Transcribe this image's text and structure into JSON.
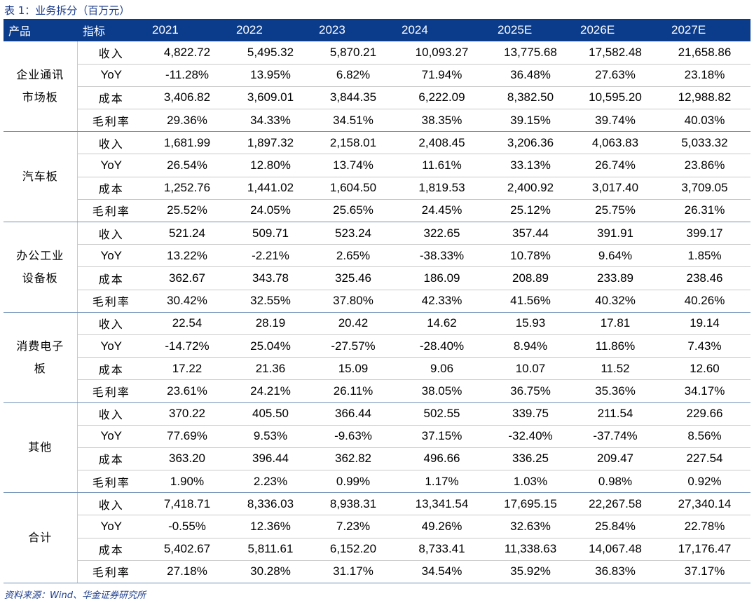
{
  "caption": "表 1：业务拆分（百万元）",
  "header": {
    "product": "产品",
    "indicator": "指标",
    "years": [
      "2021",
      "2022",
      "2023",
      "2024",
      "2025E",
      "2026E",
      "2027E"
    ]
  },
  "groups": [
    {
      "name_lines": [
        "企业通讯",
        "市场板"
      ],
      "rows": [
        {
          "indicator": "收入",
          "values": [
            "4,822.72",
            "5,495.32",
            "5,870.21",
            "10,093.27",
            "13,775.68",
            "17,582.48",
            "21,658.86"
          ]
        },
        {
          "indicator": "YoY",
          "values": [
            "-11.28%",
            "13.95%",
            "6.82%",
            "71.94%",
            "36.48%",
            "27.63%",
            "23.18%"
          ]
        },
        {
          "indicator": "成本",
          "values": [
            "3,406.82",
            "3,609.01",
            "3,844.35",
            "6,222.09",
            "8,382.50",
            "10,595.20",
            "12,988.82"
          ]
        },
        {
          "indicator": "毛利率",
          "values": [
            "29.36%",
            "34.33%",
            "34.51%",
            "38.35%",
            "39.15%",
            "39.74%",
            "40.03%"
          ]
        }
      ]
    },
    {
      "name_lines": [
        "汽车板"
      ],
      "rows": [
        {
          "indicator": "收入",
          "values": [
            "1,681.99",
            "1,897.32",
            "2,158.01",
            "2,408.45",
            "3,206.36",
            "4,063.83",
            "5,033.32"
          ]
        },
        {
          "indicator": "YoY",
          "values": [
            "26.54%",
            "12.80%",
            "13.74%",
            "11.61%",
            "33.13%",
            "26.74%",
            "23.86%"
          ]
        },
        {
          "indicator": "成本",
          "values": [
            "1,252.76",
            "1,441.02",
            "1,604.50",
            "1,819.53",
            "2,400.92",
            "3,017.40",
            "3,709.05"
          ]
        },
        {
          "indicator": "毛利率",
          "values": [
            "25.52%",
            "24.05%",
            "25.65%",
            "24.45%",
            "25.12%",
            "25.75%",
            "26.31%"
          ]
        }
      ]
    },
    {
      "name_lines": [
        "办公工业",
        "设备板"
      ],
      "rows": [
        {
          "indicator": "收入",
          "values": [
            "521.24",
            "509.71",
            "523.24",
            "322.65",
            "357.44",
            "391.91",
            "399.17"
          ]
        },
        {
          "indicator": "YoY",
          "values": [
            "13.22%",
            "-2.21%",
            "2.65%",
            "-38.33%",
            "10.78%",
            "9.64%",
            "1.85%"
          ]
        },
        {
          "indicator": "成本",
          "values": [
            "362.67",
            "343.78",
            "325.46",
            "186.09",
            "208.89",
            "233.89",
            "238.46"
          ]
        },
        {
          "indicator": "毛利率",
          "values": [
            "30.42%",
            "32.55%",
            "37.80%",
            "42.33%",
            "41.56%",
            "40.32%",
            "40.26%"
          ]
        }
      ]
    },
    {
      "name_lines": [
        "消费电子",
        "板"
      ],
      "rows": [
        {
          "indicator": "收入",
          "values": [
            "22.54",
            "28.19",
            "20.42",
            "14.62",
            "15.93",
            "17.81",
            "19.14"
          ]
        },
        {
          "indicator": "YoY",
          "values": [
            "-14.72%",
            "25.04%",
            "-27.57%",
            "-28.40%",
            "8.94%",
            "11.86%",
            "7.43%"
          ]
        },
        {
          "indicator": "成本",
          "values": [
            "17.22",
            "21.36",
            "15.09",
            "9.06",
            "10.07",
            "11.52",
            "12.60"
          ]
        },
        {
          "indicator": "毛利率",
          "values": [
            "23.61%",
            "24.21%",
            "26.11%",
            "38.05%",
            "36.75%",
            "35.36%",
            "34.17%"
          ]
        }
      ]
    },
    {
      "name_lines": [
        "其他"
      ],
      "rows": [
        {
          "indicator": "收入",
          "values": [
            "370.22",
            "405.50",
            "366.44",
            "502.55",
            "339.75",
            "211.54",
            "229.66"
          ]
        },
        {
          "indicator": "YoY",
          "values": [
            "77.69%",
            "9.53%",
            "-9.63%",
            "37.15%",
            "-32.40%",
            "-37.74%",
            "8.56%"
          ]
        },
        {
          "indicator": "成本",
          "values": [
            "363.20",
            "396.44",
            "362.82",
            "496.66",
            "336.25",
            "209.47",
            "227.54"
          ]
        },
        {
          "indicator": "毛利率",
          "values": [
            "1.90%",
            "2.23%",
            "0.99%",
            "1.17%",
            "1.03%",
            "0.98%",
            "0.92%"
          ]
        }
      ]
    },
    {
      "name_lines": [
        "合计"
      ],
      "rows": [
        {
          "indicator": "收入",
          "values": [
            "7,418.71",
            "8,336.03",
            "8,938.31",
            "13,341.54",
            "17,695.15",
            "22,267.58",
            "27,340.14"
          ]
        },
        {
          "indicator": "YoY",
          "values": [
            "-0.55%",
            "12.36%",
            "7.23%",
            "49.26%",
            "32.63%",
            "25.84%",
            "22.78%"
          ]
        },
        {
          "indicator": "成本",
          "values": [
            "5,402.67",
            "5,811.61",
            "6,152.20",
            "8,733.41",
            "11,338.63",
            "14,067.48",
            "17,176.47"
          ]
        },
        {
          "indicator": "毛利率",
          "values": [
            "27.18%",
            "30.28%",
            "31.17%",
            "34.54%",
            "35.92%",
            "36.83%",
            "37.17%"
          ]
        }
      ]
    }
  ],
  "source": "资料来源：Wind、华金证券研究所"
}
